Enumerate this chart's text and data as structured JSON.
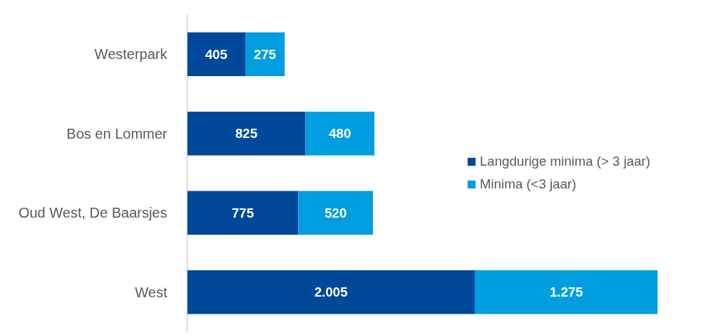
{
  "chart_data": {
    "type": "bar",
    "orientation": "horizontal",
    "stacked": true,
    "data_labels": true,
    "legend": "right",
    "grid": false,
    "categories": [
      "Westerpark",
      "Bos en Lommer",
      "Oud West, De Baarsjes",
      "West"
    ],
    "series": [
      {
        "name": "Langdurige minima (> 3 jaar)",
        "color": "#00489a",
        "values": [
          405,
          825,
          775,
          2005
        ],
        "value_labels": [
          "405",
          "825",
          "775",
          "2.005"
        ]
      },
      {
        "name": "Minima (<3 jaar)",
        "color": "#009de0",
        "values": [
          275,
          480,
          520,
          1275
        ],
        "value_labels": [
          "275",
          "480",
          "520",
          "1.275"
        ]
      }
    ]
  }
}
